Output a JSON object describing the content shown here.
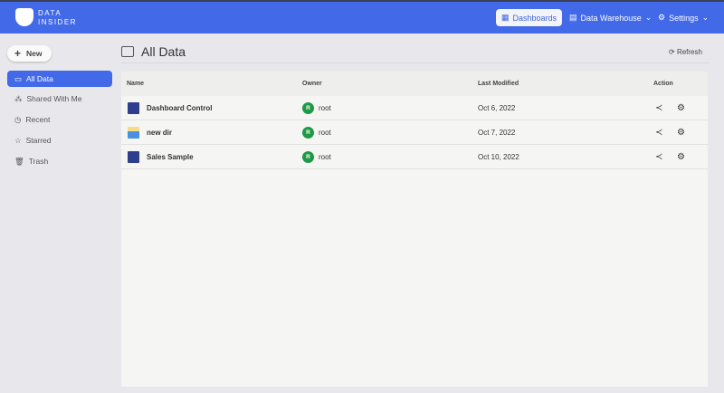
{
  "header": {
    "brand_line1": "DATA",
    "brand_line2": "INSIDER",
    "nav": [
      {
        "label": "Dashboards",
        "icon": "dashboard-icon",
        "active": true
      },
      {
        "label": "Data Warehouse",
        "icon": "database-icon"
      },
      {
        "label": "Settings",
        "icon": "gear-icon"
      }
    ]
  },
  "sidebar": {
    "new_label": "New",
    "items": [
      {
        "label": "All Data",
        "icon": "folder-icon",
        "active": true
      },
      {
        "label": "Shared With Me",
        "icon": "share-icon"
      },
      {
        "label": "Recent",
        "icon": "clock-icon"
      },
      {
        "label": "Starred",
        "icon": "star-icon"
      },
      {
        "label": "Trash",
        "icon": "trash-icon"
      }
    ]
  },
  "main": {
    "title": "All Data",
    "refresh_label": "Refresh",
    "columns": [
      "Name",
      "Owner",
      "Last Modified",
      "Action"
    ],
    "rows": [
      {
        "name": "Dashboard Control",
        "type": "dashboard",
        "owner_initial": "R",
        "owner": "root",
        "modified": "Oct 6, 2022"
      },
      {
        "name": "new dir",
        "type": "folder",
        "owner_initial": "R",
        "owner": "root",
        "modified": "Oct 7, 2022"
      },
      {
        "name": "Sales Sample",
        "type": "dashboard",
        "owner_initial": "R",
        "owner": "root",
        "modified": "Oct 10, 2022"
      }
    ]
  },
  "colors": {
    "accent": "#4169e8",
    "owner_avatar": "#1e9a46"
  }
}
